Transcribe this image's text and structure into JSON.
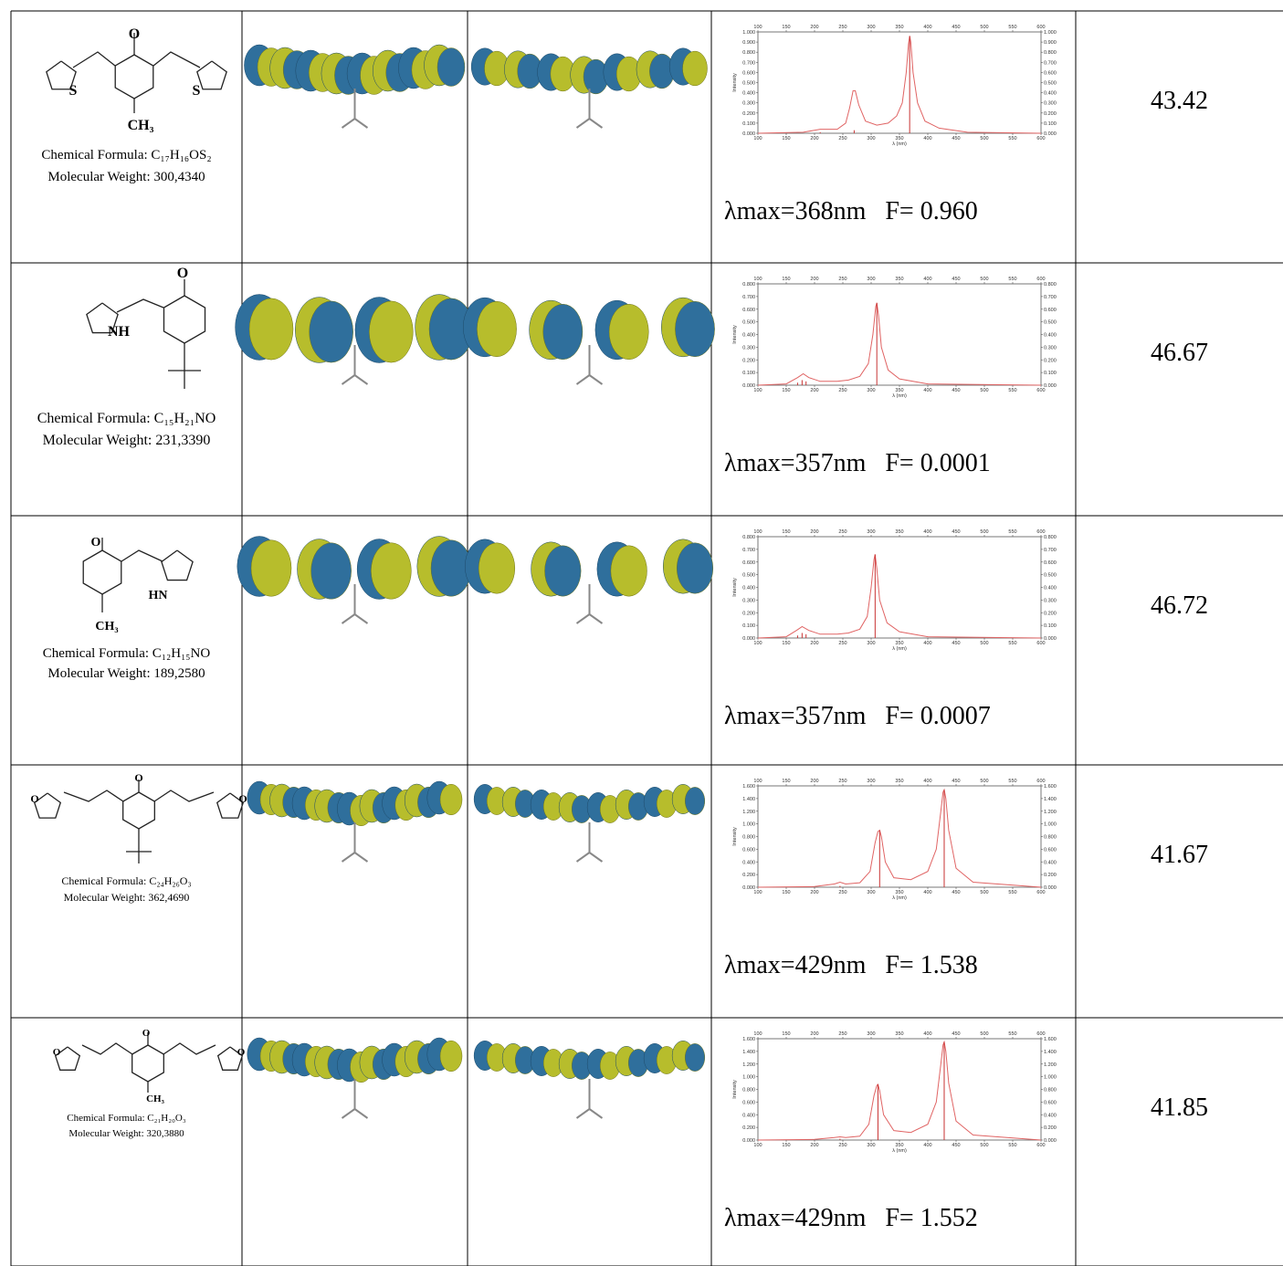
{
  "table": {
    "rows": [
      {
        "structure": {
          "atom_labels": [
            "O",
            "S",
            "S",
            "CH₃"
          ],
          "formula": "Chemical Formula: C₁₇H₁₆OS₂",
          "weight": "Molecular Weight: 300,4340"
        },
        "spectrum": {
          "type": "line",
          "x_label": "λ (nm)",
          "y_label": "Intensity",
          "xlim": [
            100,
            600
          ],
          "xticks": [
            100,
            150,
            200,
            250,
            300,
            350,
            400,
            450,
            500,
            550,
            600
          ],
          "ylim": [
            0,
            1
          ],
          "yticks": [
            {
              "value": 0,
              "label": "0.000"
            },
            {
              "value": 0.1,
              "label": "0.100"
            },
            {
              "value": 0.2,
              "label": "0.200"
            },
            {
              "value": 0.3,
              "label": "0.300"
            },
            {
              "value": 0.4,
              "label": "0.400"
            },
            {
              "value": 0.5,
              "label": "0.500"
            },
            {
              "value": 0.6,
              "label": "0.600"
            },
            {
              "value": 0.7,
              "label": "0.700"
            },
            {
              "value": 0.8,
              "label": "0.800"
            },
            {
              "value": 0.9,
              "label": "0.900"
            },
            {
              "value": 1,
              "label": "1.000"
            }
          ],
          "curve": {
            "color": "#e06464",
            "x": [
              100,
              180,
              210,
              240,
              255,
              262,
              268,
              272,
              278,
              290,
              310,
              330,
              345,
              355,
              362,
              366,
              368,
              370,
              374,
              382,
              395,
              420,
              470,
              600
            ],
            "values": [
              0,
              0.01,
              0.04,
              0.04,
              0.1,
              0.25,
              0.42,
              0.42,
              0.28,
              0.12,
              0.08,
              0.1,
              0.17,
              0.3,
              0.6,
              0.88,
              0.96,
              0.9,
              0.6,
              0.3,
              0.12,
              0.05,
              0.01,
              0
            ]
          },
          "sticks": {
            "color": "#c83232",
            "x": [
              210,
              270,
              368
            ],
            "values": [
              0.01,
              0.03,
              0.96
            ]
          }
        },
        "lambda": "λmax=368nm   F= 0.960",
        "value": "43.42"
      },
      {
        "structure": {
          "atom_labels": [
            "O",
            "NH"
          ],
          "formula": "Chemical Formula: C₁₅H₂₁NO",
          "weight": "Molecular Weight: 231,3390"
        },
        "spectrum": {
          "type": "line",
          "x_label": "λ (nm)",
          "y_label": "Intensity",
          "xlim": [
            100,
            600
          ],
          "xticks": [
            100,
            150,
            200,
            250,
            300,
            350,
            400,
            450,
            500,
            550,
            600
          ],
          "ylim": [
            0,
            0.8
          ],
          "yticks": [
            {
              "value": 0,
              "label": "0.000"
            },
            {
              "value": 0.1,
              "label": "0.100"
            },
            {
              "value": 0.2,
              "label": "0.200"
            },
            {
              "value": 0.3,
              "label": "0.300"
            },
            {
              "value": 0.4,
              "label": "0.400"
            },
            {
              "value": 0.5,
              "label": "0.500"
            },
            {
              "value": 0.6,
              "label": "0.600"
            },
            {
              "value": 0.7,
              "label": "0.700"
            },
            {
              "value": 0.8,
              "label": "0.800"
            }
          ],
          "curve": {
            "color": "#e06464",
            "x": [
              100,
              150,
              170,
              180,
              190,
              210,
              240,
              260,
              280,
              295,
              303,
              308,
              310,
              313,
              318,
              330,
              350,
              400,
              600
            ],
            "values": [
              0,
              0.01,
              0.06,
              0.09,
              0.06,
              0.03,
              0.03,
              0.04,
              0.07,
              0.17,
              0.4,
              0.62,
              0.65,
              0.55,
              0.3,
              0.12,
              0.05,
              0.01,
              0
            ]
          },
          "sticks": {
            "color": "#c83232",
            "x": [
              170,
              178,
              185,
              310
            ],
            "values": [
              0.02,
              0.04,
              0.03,
              0.65
            ]
          }
        },
        "lambda": "λmax=357nm   F= 0.0001",
        "value": "46.67"
      },
      {
        "structure": {
          "atom_labels": [
            "O",
            "HN",
            "CH₃"
          ],
          "formula": "Chemical Formula: C₁₂H₁₅NO",
          "weight": "Molecular Weight: 189,2580"
        },
        "spectrum": {
          "type": "line",
          "x_label": "λ (nm)",
          "y_label": "Intensity",
          "xlim": [
            100,
            600
          ],
          "xticks": [
            100,
            150,
            200,
            250,
            300,
            350,
            400,
            450,
            500,
            550,
            600
          ],
          "ylim": [
            0,
            0.8
          ],
          "yticks": [
            {
              "value": 0,
              "label": "0.000"
            },
            {
              "value": 0.1,
              "label": "0.100"
            },
            {
              "value": 0.2,
              "label": "0.200"
            },
            {
              "value": 0.3,
              "label": "0.300"
            },
            {
              "value": 0.4,
              "label": "0.400"
            },
            {
              "value": 0.5,
              "label": "0.500"
            },
            {
              "value": 0.6,
              "label": "0.600"
            },
            {
              "value": 0.7,
              "label": "0.700"
            },
            {
              "value": 0.8,
              "label": "0.800"
            }
          ],
          "curve": {
            "color": "#e06464",
            "x": [
              100,
              150,
              168,
              178,
              190,
              210,
              240,
              260,
              280,
              293,
              300,
              305,
              307,
              310,
              315,
              328,
              350,
              400,
              600
            ],
            "values": [
              0,
              0.01,
              0.06,
              0.09,
              0.06,
              0.03,
              0.03,
              0.04,
              0.07,
              0.17,
              0.4,
              0.62,
              0.66,
              0.55,
              0.3,
              0.12,
              0.05,
              0.01,
              0
            ]
          },
          "sticks": {
            "color": "#c83232",
            "x": [
              170,
              178,
              185,
              307
            ],
            "values": [
              0.02,
              0.04,
              0.03,
              0.66
            ]
          }
        },
        "lambda": "λmax=357nm   F= 0.0007",
        "value": "46.72"
      },
      {
        "structure": {
          "atom_labels": [
            "O",
            "O",
            "O"
          ],
          "formula": "Chemical Formula: C₂₄H₂₆O₃",
          "weight": "Molecular Weight: 362,4690"
        },
        "spectrum": {
          "type": "line",
          "x_label": "λ (nm)",
          "y_label": "Intensity",
          "xlim": [
            100,
            600
          ],
          "xticks": [
            100,
            150,
            200,
            250,
            300,
            350,
            400,
            450,
            500,
            550,
            600
          ],
          "ylim": [
            0,
            1.6
          ],
          "yticks": [
            {
              "value": 0,
              "label": "0.000"
            },
            {
              "value": 0.2,
              "label": "0.200"
            },
            {
              "value": 0.4,
              "label": "0.400"
            },
            {
              "value": 0.6,
              "label": "0.600"
            },
            {
              "value": 0.8,
              "label": "0.800"
            },
            {
              "value": 1,
              "label": "1.000"
            },
            {
              "value": 1.2,
              "label": "1.200"
            },
            {
              "value": 1.4,
              "label": "1.400"
            },
            {
              "value": 1.6,
              "label": "1.600"
            }
          ],
          "curve": {
            "color": "#e06464",
            "x": [
              100,
              200,
              235,
              245,
              255,
              280,
              298,
              307,
              312,
              315,
              318,
              325,
              340,
              370,
              400,
              415,
              423,
              427,
              429,
              432,
              437,
              450,
              480,
              600
            ],
            "values": [
              0,
              0.01,
              0.05,
              0.08,
              0.05,
              0.07,
              0.25,
              0.7,
              0.88,
              0.9,
              0.8,
              0.4,
              0.15,
              0.12,
              0.25,
              0.6,
              1.2,
              1.5,
              1.54,
              1.4,
              0.9,
              0.3,
              0.08,
              0
            ]
          },
          "sticks": {
            "color": "#c83232",
            "x": [
              245,
              315,
              429
            ],
            "values": [
              0.02,
              0.9,
              1.54
            ]
          }
        },
        "lambda": "λmax=429nm   F= 1.538",
        "value": "41.67"
      },
      {
        "structure": {
          "atom_labels": [
            "O",
            "O",
            "O",
            "CH₃"
          ],
          "formula": "Chemical Formula: C₂₁H₂₀O₃",
          "weight": "Molecular Weight: 320,3880"
        },
        "spectrum": {
          "type": "line",
          "x_label": "λ (nm)",
          "y_label": "Intensity",
          "xlim": [
            100,
            600
          ],
          "xticks": [
            100,
            150,
            200,
            250,
            300,
            350,
            400,
            450,
            500,
            550,
            600
          ],
          "ylim": [
            0,
            1.6
          ],
          "yticks": [
            {
              "value": 0,
              "label": "0.000"
            },
            {
              "value": 0.2,
              "label": "0.200"
            },
            {
              "value": 0.4,
              "label": "0.400"
            },
            {
              "value": 0.6,
              "label": "0.600"
            },
            {
              "value": 0.8,
              "label": "0.800"
            },
            {
              "value": 1,
              "label": "1.000"
            },
            {
              "value": 1.2,
              "label": "1.200"
            },
            {
              "value": 1.4,
              "label": "1.400"
            },
            {
              "value": 1.6,
              "label": "1.600"
            }
          ],
          "curve": {
            "color": "#e06464",
            "x": [
              100,
              200,
              235,
              245,
              255,
              280,
              296,
              305,
              310,
              312,
              315,
              322,
              340,
              370,
              400,
              415,
              423,
              427,
              429,
              432,
              437,
              450,
              480,
              600
            ],
            "values": [
              0,
              0.01,
              0.04,
              0.05,
              0.04,
              0.06,
              0.25,
              0.7,
              0.86,
              0.88,
              0.78,
              0.4,
              0.15,
              0.12,
              0.25,
              0.6,
              1.2,
              1.5,
              1.55,
              1.4,
              0.9,
              0.3,
              0.08,
              0
            ]
          },
          "sticks": {
            "color": "#c83232",
            "x": [
              245,
              312,
              429
            ],
            "values": [
              0.02,
              0.88,
              1.55
            ]
          }
        },
        "lambda": "λmax=429nm   F= 1.552",
        "value": "41.85"
      }
    ]
  }
}
